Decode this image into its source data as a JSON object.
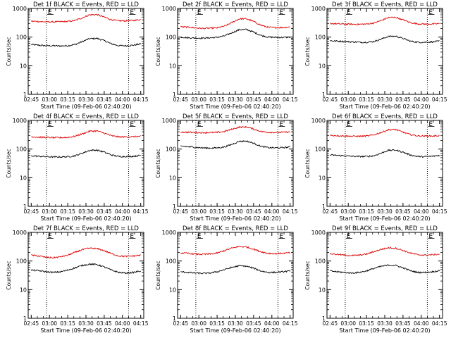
{
  "figure": {
    "ylabel": "Counts/sec",
    "xlabel": "Start Time (09-Feb-06 02:40:20)",
    "marker_label": "E"
  },
  "chart_data": [
    {
      "type": "line",
      "title": "Det 1f BLACK = Events, RED = LLD",
      "x_ticks": [
        "02:45",
        "03:00",
        "03:15",
        "03:30",
        "03:45",
        "04:00",
        "04:15"
      ],
      "y_ticks": [
        "1",
        "10",
        "100",
        "1000"
      ],
      "ylim": [
        1,
        1000
      ],
      "yscale": "log",
      "xlim_min": [
        -2.5,
        92.5
      ],
      "marker_lines_min": [
        12.5,
        80
      ],
      "series": [
        {
          "color": "#000000",
          "values": [
            55,
            52,
            50,
            50,
            49,
            50,
            55,
            70,
            88,
            90,
            75,
            58,
            50,
            50,
            52,
            58
          ]
        },
        {
          "color": "#dd0000",
          "values": [
            360,
            350,
            340,
            340,
            345,
            350,
            380,
            470,
            600,
            610,
            500,
            400,
            370,
            370,
            380,
            410
          ]
        }
      ]
    },
    {
      "type": "line",
      "title": "Det 2f BLACK = Events, RED = LLD",
      "x_ticks": [
        "02:45",
        "03:00",
        "03:15",
        "03:30",
        "03:45",
        "04:00",
        "04:15"
      ],
      "y_ticks": [
        "1",
        "10",
        "100",
        "1000"
      ],
      "ylim": [
        1,
        1000
      ],
      "yscale": "log",
      "xlim_min": [
        -2.5,
        92.5
      ],
      "marker_lines_min": [
        12.5,
        80
      ],
      "series": [
        {
          "color": "#000000",
          "values": [
            100,
            95,
            93,
            92,
            94,
            98,
            110,
            140,
            180,
            185,
            150,
            115,
            100,
            98,
            97,
            100
          ]
        },
        {
          "color": "#dd0000",
          "values": [
            230,
            220,
            210,
            200,
            205,
            210,
            240,
            320,
            430,
            440,
            350,
            260,
            220,
            215,
            215,
            225
          ]
        }
      ]
    },
    {
      "type": "line",
      "title": "Det 3f BLACK = Events, RED = LLD",
      "x_ticks": [
        "02:45",
        "03:00",
        "03:15",
        "03:30",
        "03:45",
        "04:00",
        "04:15"
      ],
      "y_ticks": [
        "1",
        "10",
        "100",
        "1000"
      ],
      "ylim": [
        1,
        1000
      ],
      "yscale": "log",
      "xlim_min": [
        -2.5,
        92.5
      ],
      "marker_lines_min": [
        12.5,
        80
      ],
      "series": [
        {
          "color": "#000000",
          "values": [
            75,
            72,
            70,
            68,
            66,
            66,
            70,
            85,
            105,
            108,
            90,
            72,
            66,
            66,
            68,
            72
          ]
        },
        {
          "color": "#dd0000",
          "values": [
            300,
            290,
            285,
            280,
            280,
            285,
            310,
            380,
            480,
            490,
            400,
            320,
            290,
            285,
            285,
            295
          ]
        }
      ]
    },
    {
      "type": "line",
      "title": "Det 4f BLACK = Events, RED = LLD",
      "x_ticks": [
        "02:45",
        "03:00",
        "03:15",
        "03:30",
        "03:45",
        "04:00",
        "04:15"
      ],
      "y_ticks": [
        "1",
        "10",
        "100",
        "1000"
      ],
      "ylim": [
        1,
        1000
      ],
      "yscale": "log",
      "xlim_min": [
        -2.5,
        92.5
      ],
      "marker_lines_min": [
        12.5,
        80
      ],
      "series": [
        {
          "color": "#000000",
          "values": [
            58,
            56,
            54,
            53,
            53,
            54,
            58,
            72,
            90,
            92,
            78,
            62,
            55,
            55,
            56,
            60
          ]
        },
        {
          "color": "#dd0000",
          "values": [
            270,
            260,
            255,
            250,
            250,
            255,
            280,
            340,
            420,
            430,
            360,
            290,
            265,
            265,
            270,
            280
          ]
        }
      ]
    },
    {
      "type": "line",
      "title": "Det 5f BLACK = Events, RED = LLD",
      "x_ticks": [
        "02:45",
        "03:00",
        "03:15",
        "03:30",
        "03:45",
        "04:00",
        "04:15"
      ],
      "y_ticks": [
        "1",
        "10",
        "100",
        "1000"
      ],
      "ylim": [
        1,
        1000
      ],
      "yscale": "log",
      "xlim_min": [
        -2.5,
        92.5
      ],
      "marker_lines_min": [
        12.5,
        80
      ],
      "series": [
        {
          "color": "#000000",
          "values": [
            125,
            120,
            115,
            110,
            108,
            110,
            118,
            145,
            185,
            190,
            160,
            125,
            112,
            110,
            112,
            118
          ]
        },
        {
          "color": "#dd0000",
          "values": [
            390,
            385,
            380,
            375,
            375,
            380,
            410,
            490,
            580,
            590,
            500,
            410,
            385,
            380,
            385,
            395
          ]
        }
      ]
    },
    {
      "type": "line",
      "title": "Det 6f BLACK = Events, RED = LLD",
      "x_ticks": [
        "02:45",
        "03:00",
        "03:15",
        "03:30",
        "03:45",
        "04:00",
        "04:15"
      ],
      "y_ticks": [
        "1",
        "10",
        "100",
        "1000"
      ],
      "ylim": [
        1,
        1000
      ],
      "yscale": "log",
      "xlim_min": [
        -2.5,
        92.5
      ],
      "marker_lines_min": [
        12.5,
        80
      ],
      "series": [
        {
          "color": "#000000",
          "values": [
            62,
            60,
            58,
            56,
            55,
            55,
            58,
            72,
            90,
            92,
            78,
            62,
            55,
            54,
            56,
            60
          ]
        },
        {
          "color": "#dd0000",
          "values": [
            300,
            295,
            285,
            280,
            280,
            285,
            310,
            380,
            470,
            480,
            390,
            320,
            290,
            285,
            285,
            295
          ]
        }
      ]
    },
    {
      "type": "line",
      "title": "Det 7f BLACK = Events, RED = LLD",
      "x_ticks": [
        "02:45",
        "03:00",
        "03:15",
        "03:30",
        "03:45",
        "04:00",
        "04:15"
      ],
      "y_ticks": [
        "1",
        "10",
        "100",
        "1000"
      ],
      "ylim": [
        1,
        1000
      ],
      "yscale": "log",
      "xlim_min": [
        -2.5,
        92.5
      ],
      "marker_lines_min": [
        12.5,
        80
      ],
      "series": [
        {
          "color": "#000000",
          "values": [
            48,
            46,
            42,
            40,
            42,
            48,
            58,
            70,
            78,
            75,
            62,
            48,
            40,
            38,
            40,
            45
          ]
        },
        {
          "color": "#dd0000",
          "values": [
            160,
            150,
            135,
            130,
            140,
            160,
            200,
            250,
            280,
            270,
            230,
            180,
            150,
            145,
            150,
            160
          ]
        }
      ]
    },
    {
      "type": "line",
      "title": "Det 8f BLACK = Events, RED = LLD",
      "x_ticks": [
        "02:45",
        "03:00",
        "03:15",
        "03:30",
        "03:45",
        "04:00",
        "04:15"
      ],
      "y_ticks": [
        "1",
        "10",
        "100",
        "1000"
      ],
      "ylim": [
        1,
        1000
      ],
      "yscale": "log",
      "xlim_min": [
        -2.5,
        92.5
      ],
      "marker_lines_min": [
        12.5,
        80
      ],
      "series": [
        {
          "color": "#000000",
          "values": [
            42,
            40,
            38,
            37,
            38,
            42,
            50,
            60,
            68,
            66,
            56,
            45,
            40,
            40,
            42,
            45
          ]
        },
        {
          "color": "#dd0000",
          "values": [
            190,
            185,
            175,
            170,
            175,
            190,
            230,
            280,
            320,
            310,
            260,
            210,
            185,
            180,
            185,
            195
          ]
        }
      ]
    },
    {
      "type": "line",
      "title": "Det 9f BLACK = Events, RED = LLD",
      "x_ticks": [
        "02:45",
        "03:00",
        "03:15",
        "03:30",
        "03:45",
        "04:00",
        "04:15"
      ],
      "y_ticks": [
        "1",
        "10",
        "100",
        "1000"
      ],
      "ylim": [
        1,
        1000
      ],
      "yscale": "log",
      "xlim_min": [
        -2.5,
        92.5
      ],
      "marker_lines_min": [
        12.5,
        80
      ],
      "series": [
        {
          "color": "#000000",
          "values": [
            45,
            42,
            40,
            38,
            40,
            45,
            55,
            65,
            72,
            70,
            58,
            46,
            40,
            40,
            42,
            46
          ]
        },
        {
          "color": "#dd0000",
          "values": [
            180,
            170,
            160,
            155,
            160,
            175,
            210,
            255,
            290,
            280,
            235,
            190,
            165,
            160,
            165,
            175
          ]
        }
      ]
    }
  ]
}
